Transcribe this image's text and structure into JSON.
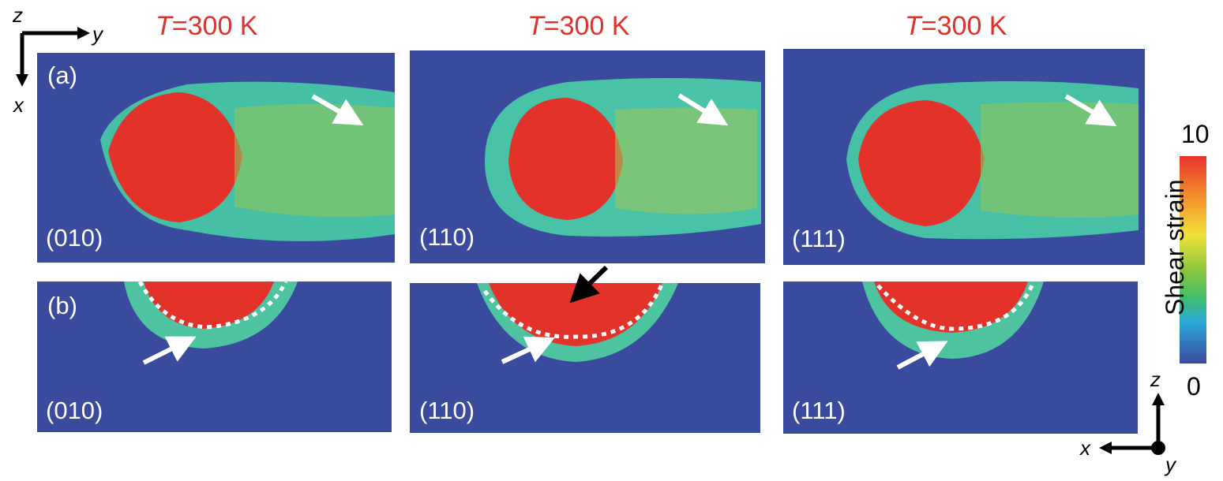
{
  "titles": {
    "t1_prefix": "T",
    "t1_suffix": "=300 K",
    "t2_prefix": "T",
    "t2_suffix": "=300 K",
    "t3_prefix": "T",
    "t3_suffix": "=300 K"
  },
  "axes_top": {
    "z": "z",
    "y": "y",
    "x": "x"
  },
  "axes_bottom": {
    "z": "z",
    "x": "x",
    "y": "y"
  },
  "panels": {
    "a_label": "(a)",
    "b_label": "(b)",
    "a1": "(010)",
    "a2": "(110)",
    "a3": "(111)",
    "b1": "(010)",
    "b2": "(110)",
    "b3": "(111)"
  },
  "colorbar": {
    "title": "Shear strain",
    "max": "10",
    "min": "0",
    "colors": [
      "#3b4a9e",
      "#2aa7d8",
      "#3fbf6a",
      "#8cc63f",
      "#f0e23a",
      "#f59b2d",
      "#e8322b"
    ]
  }
}
